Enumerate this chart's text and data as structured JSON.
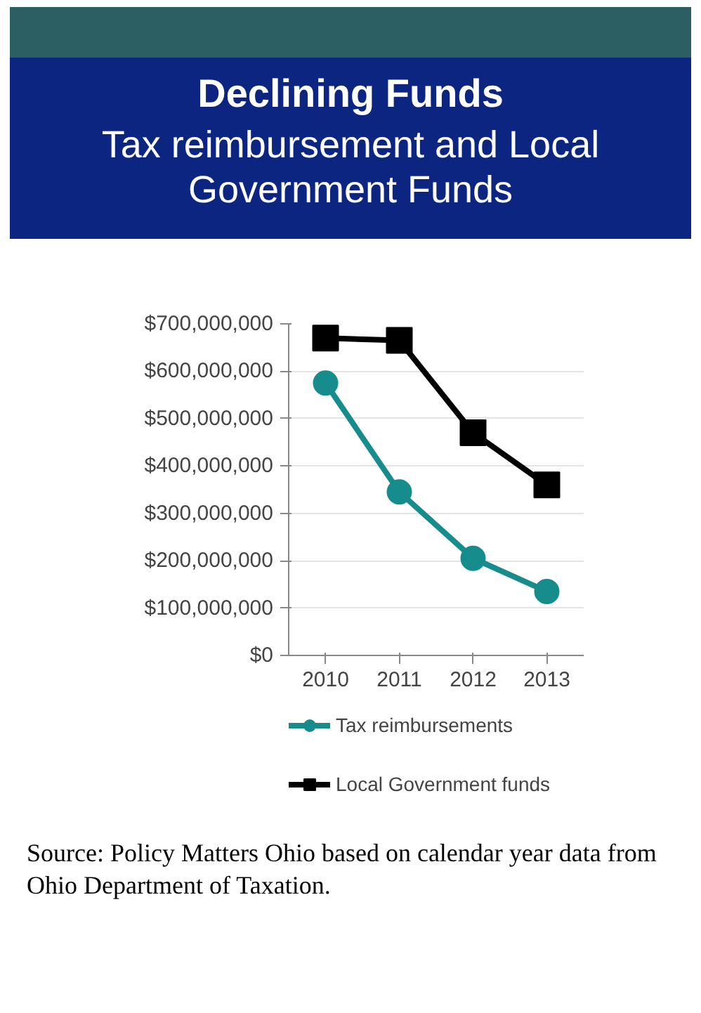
{
  "chart_data": {
    "type": "line",
    "title": "Declining Funds",
    "subtitle": "Tax reimbursement and Local Government Funds",
    "categories": [
      "2010",
      "2011",
      "2012",
      "2013"
    ],
    "series": [
      {
        "name": "Tax reimbursements",
        "color": "#168c8c",
        "values": [
          575000000,
          345000000,
          205000000,
          135000000
        ],
        "marker": "circle"
      },
      {
        "name": "Local Government funds",
        "color": "#000000",
        "values": [
          670000000,
          665000000,
          470000000,
          360000000
        ],
        "marker": "square"
      }
    ],
    "ylim": [
      0,
      700000000
    ],
    "yticks": [
      {
        "value": 0,
        "label": "$0"
      },
      {
        "value": 100000000,
        "label": "$100,000,000"
      },
      {
        "value": 200000000,
        "label": "$200,000,000"
      },
      {
        "value": 300000000,
        "label": "$300,000,000"
      },
      {
        "value": 400000000,
        "label": "$400,000,000"
      },
      {
        "value": 500000000,
        "label": "$500,000,000"
      },
      {
        "value": 600000000,
        "label": "$600,000,000"
      },
      {
        "value": 700000000,
        "label": "$700,000,000"
      }
    ],
    "grid": "y",
    "legend": "bottom",
    "line_style": "solid",
    "annotations": [
      "Source: Policy Matters Ohio based on calendar year data from Ohio Department of Taxation."
    ]
  }
}
